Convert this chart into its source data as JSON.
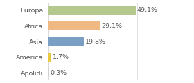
{
  "categories": [
    "Europa",
    "Africa",
    "Asia",
    "America",
    "Apolidi"
  ],
  "values": [
    49.1,
    29.1,
    19.8,
    1.7,
    0.3
  ],
  "labels": [
    "49,1%",
    "29,1%",
    "19,8%",
    "1,7%",
    "0,3%"
  ],
  "bar_colors": [
    "#b5c98e",
    "#f0b882",
    "#7b9ec4",
    "#e8c840",
    "#d0d0d0"
  ],
  "background_color": "#ffffff",
  "xlim": [
    0,
    58
  ],
  "bar_height": 0.62,
  "label_fontsize": 6.8,
  "tick_fontsize": 6.8,
  "text_color": "#555555",
  "border_color": "#c8d8a0",
  "figsize": [
    2.8,
    1.2
  ],
  "dpi": 100
}
